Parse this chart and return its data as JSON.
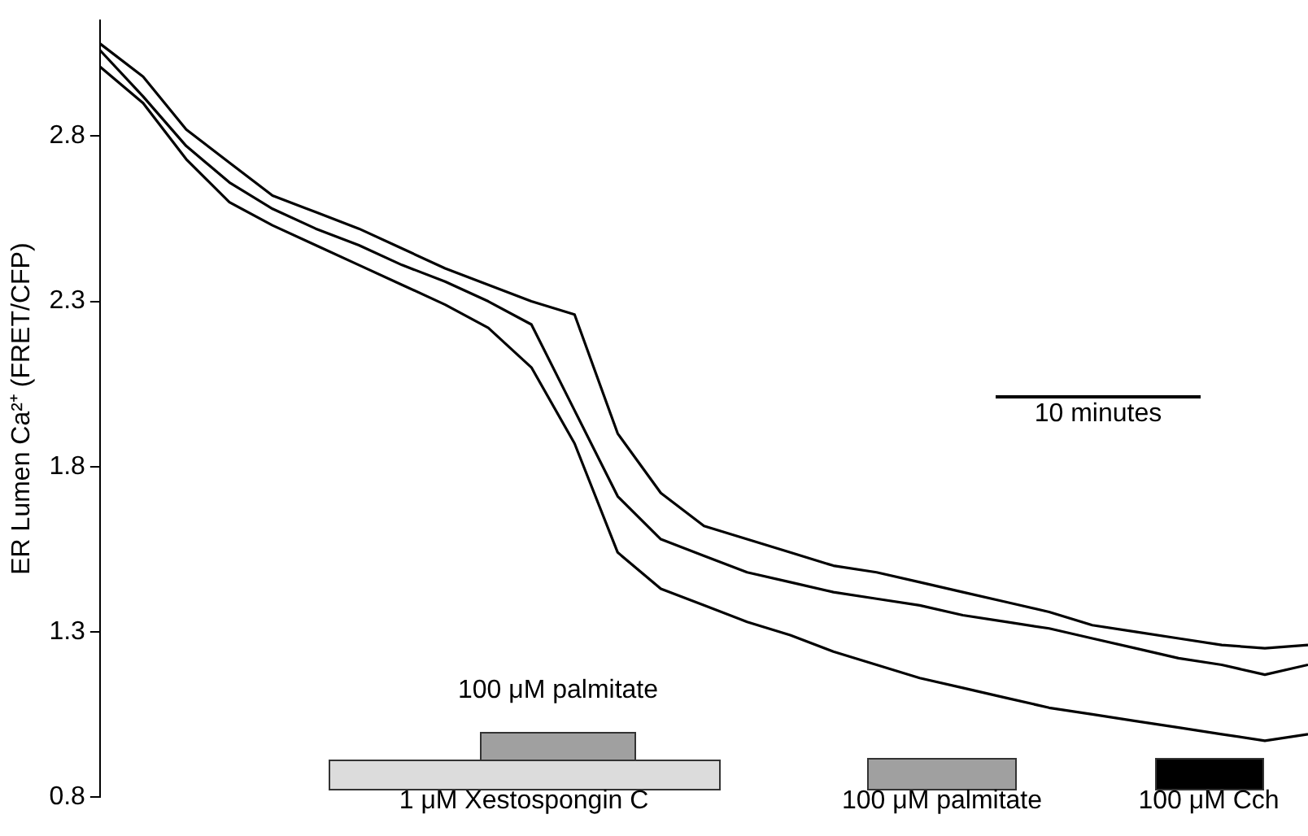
{
  "chart_data": {
    "type": "line",
    "ylabel": "ER Lumen Ca²⁺ (FRET/CFP)",
    "categories": [
      null,
      null,
      null,
      null,
      null,
      null,
      null,
      null,
      null,
      null,
      null,
      null,
      null,
      null,
      null,
      null,
      null,
      null,
      null,
      null,
      null,
      null,
      null,
      null,
      null,
      null,
      null,
      null,
      null
    ],
    "ylim": [
      0.8,
      3.15
    ],
    "yticks": [
      0.8,
      1.3,
      1.8,
      2.3,
      2.8
    ],
    "tick_labels": "y",
    "grid": false,
    "legend": false,
    "marker": "none",
    "line_style": "solid",
    "series": [
      {
        "color": "#000000",
        "values": [
          3.08,
          2.98,
          2.82,
          2.72,
          2.62,
          2.57,
          2.52,
          2.46,
          2.4,
          2.35,
          2.3,
          2.26,
          1.9,
          1.72,
          1.62,
          1.58,
          1.54,
          1.5,
          1.48,
          1.45,
          1.42,
          1.39,
          1.36,
          1.32,
          1.3,
          1.28,
          1.26,
          1.25,
          1.26
        ]
      },
      {
        "color": "#000000",
        "values": [
          3.06,
          2.92,
          2.77,
          2.66,
          2.58,
          2.52,
          2.47,
          2.41,
          2.36,
          2.3,
          2.23,
          1.97,
          1.71,
          1.58,
          1.53,
          1.48,
          1.45,
          1.42,
          1.4,
          1.38,
          1.35,
          1.33,
          1.31,
          1.28,
          1.25,
          1.22,
          1.2,
          1.17,
          1.2
        ]
      },
      {
        "color": "#000000",
        "values": [
          3.01,
          2.9,
          2.73,
          2.6,
          2.53,
          2.47,
          2.41,
          2.35,
          2.29,
          2.22,
          2.1,
          1.87,
          1.54,
          1.43,
          1.38,
          1.33,
          1.29,
          1.24,
          1.2,
          1.16,
          1.13,
          1.1,
          1.07,
          1.05,
          1.03,
          1.01,
          0.99,
          0.97,
          0.99
        ]
      }
    ],
    "annotations": [
      "100 μM palmitate",
      "1 μM Xestospongin C",
      "100 μM palmitate",
      "100 μM Cch",
      "10 minutes"
    ]
  }
}
